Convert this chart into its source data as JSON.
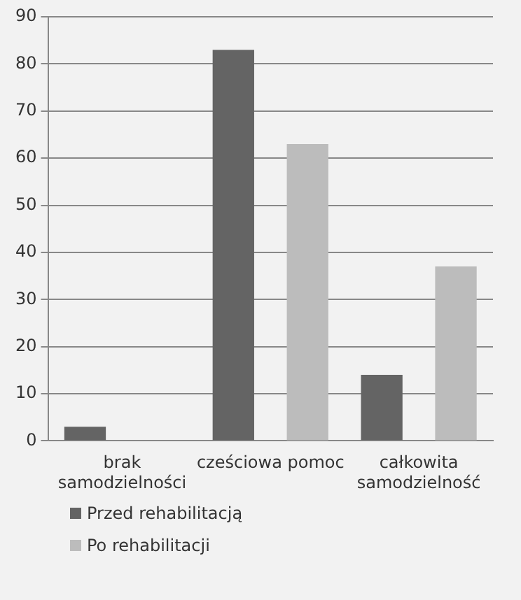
{
  "chart_data": {
    "type": "bar",
    "categories": [
      "brak samodzielności",
      "cześciowa pomoc",
      "całkowita samodzielność"
    ],
    "series": [
      {
        "name": "Przed rehabilitacją",
        "color": "#646464",
        "values": [
          3,
          83,
          14
        ]
      },
      {
        "name": "Po rehabilitacji",
        "color": "#bcbcbc",
        "values": [
          0,
          63,
          37
        ]
      }
    ],
    "ylim": [
      0,
      90
    ],
    "yticks": [
      0,
      10,
      20,
      30,
      40,
      50,
      60,
      70,
      80,
      90
    ],
    "grid": "y",
    "legend": "bottom"
  }
}
